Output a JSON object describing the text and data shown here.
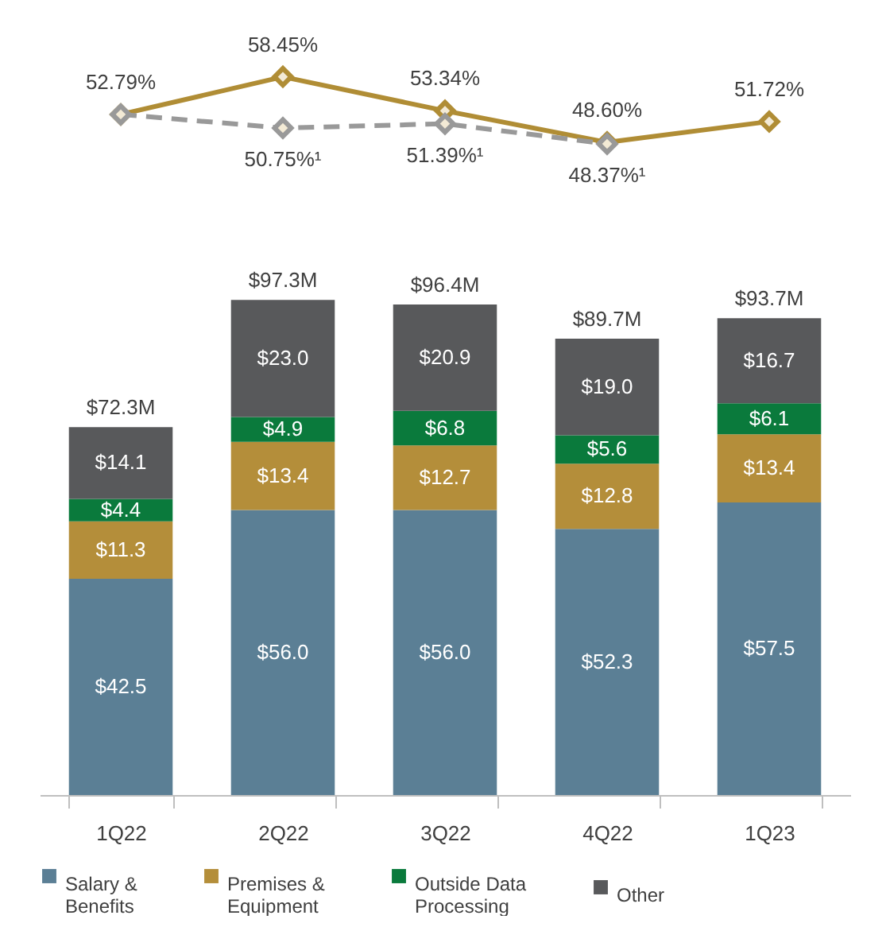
{
  "chart_data": [
    {
      "type": "line",
      "categories": [
        null,
        null,
        null,
        null,
        null
      ],
      "marker": "diamond",
      "series": [
        {
          "color": "#b08d35",
          "line_style": "solid",
          "values": [
            52.79,
            58.45,
            53.34,
            48.6,
            51.72
          ],
          "value_labels": [
            "52.79%",
            "58.45%",
            "53.34%",
            "48.60%",
            "51.72%"
          ]
        },
        {
          "color": "#999999",
          "line_style": "dashed",
          "values": [
            52.79,
            50.75,
            51.39,
            48.37,
            null
          ],
          "value_labels": [
            null,
            "50.75%¹",
            "51.39%¹",
            "48.37%¹",
            null
          ]
        }
      ]
    },
    {
      "type": "bar",
      "stacked": true,
      "categories": [
        "1Q22",
        "2Q22",
        "3Q22",
        "4Q22",
        "1Q23"
      ],
      "legend": "bottom",
      "totals": [
        "$72.3M",
        "$97.3M",
        "$96.4M",
        "$89.7M",
        "$93.7M"
      ],
      "series": [
        {
          "name": "Salary & Benefits",
          "color": "#5b7f95",
          "values": [
            42.5,
            56.0,
            56.0,
            52.3,
            57.5
          ],
          "value_labels": [
            "$42.5",
            "$56.0",
            "$56.0",
            "$52.3",
            "$57.5"
          ]
        },
        {
          "name": "Premises & Equipment",
          "color": "#b48e3a",
          "values": [
            11.3,
            13.4,
            12.7,
            12.8,
            13.4
          ],
          "value_labels": [
            "$11.3",
            "$13.4",
            "$12.7",
            "$12.8",
            "$13.4"
          ]
        },
        {
          "name": "Outside Data Processing",
          "color": "#0a7a3c",
          "values": [
            4.4,
            4.9,
            6.8,
            5.6,
            6.1
          ],
          "value_labels": [
            "$4.4",
            "$4.9",
            "$6.8",
            "$5.6",
            "$6.1"
          ]
        },
        {
          "name": "Other",
          "color": "#58595b",
          "values": [
            14.1,
            23.0,
            20.9,
            19.0,
            16.7
          ],
          "value_labels": [
            "$14.1",
            "$23.0",
            "$20.9",
            "$19.0",
            "$16.7"
          ]
        }
      ]
    }
  ]
}
